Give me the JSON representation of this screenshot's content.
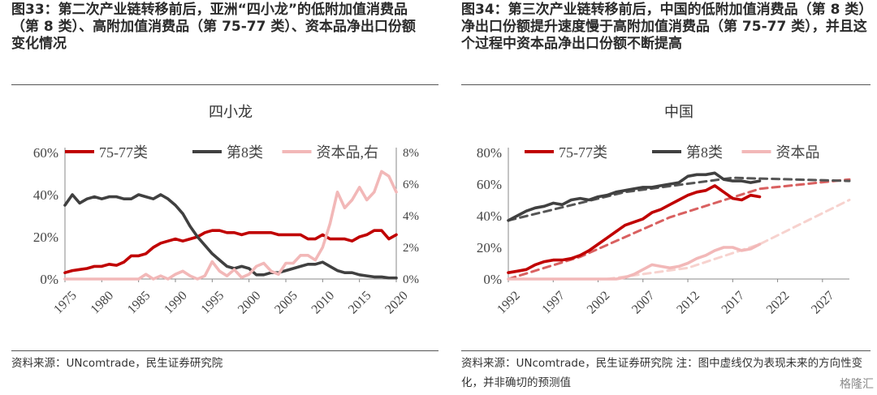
{
  "left": {
    "fig_title": "图33：第二次产业链转移前后，亚洲“四小龙”的低附加值消费品（第 8 类）、高附加值消费品（第 75-77 类）、资本品净出口份额变化情况",
    "source": "资料来源：UNcomtrade，民生证券研究院"
  },
  "right": {
    "fig_title": "图34：第三次产业链转移前后，中国的低附加值消费品（第 8 类）净出口份额提升速度慢于高附加值消费品（第 75-77 类），并且这个过程中资本品净出口份额不断提高",
    "source": "资料来源：UNcomtrade，民生证券研究院 注：图中虚线仅为表现未来的方向性变化，并非确切的预测值"
  },
  "watermark": "格隆汇",
  "chart_data": [
    {
      "type": "line",
      "title": "四小龙",
      "x": [
        1975,
        1976,
        1977,
        1978,
        1979,
        1980,
        1981,
        1982,
        1983,
        1984,
        1985,
        1986,
        1987,
        1988,
        1989,
        1990,
        1991,
        1992,
        1993,
        1994,
        1995,
        1996,
        1997,
        1998,
        1999,
        2000,
        2001,
        2002,
        2003,
        2004,
        2005,
        2006,
        2007,
        2008,
        2009,
        2010,
        2011,
        2012,
        2013,
        2014,
        2015,
        2016,
        2017,
        2018,
        2019,
        2020
      ],
      "x_ticks": [
        "1975",
        "1980",
        "1985",
        "1990",
        "1995",
        "2000",
        "2005",
        "2010",
        "2015",
        "2020"
      ],
      "ylim": [
        0,
        60
      ],
      "y_ticks": [
        "0%",
        "20%",
        "40%",
        "60%"
      ],
      "y2lim": [
        0,
        8
      ],
      "y2_ticks": [
        "0%",
        "2%",
        "4%",
        "6%",
        "8%"
      ],
      "series": [
        {
          "name": "75-77类",
          "color": "#c00000",
          "axis": "left",
          "values": [
            3,
            4,
            4.5,
            5,
            6,
            6,
            7,
            6.5,
            8,
            11,
            11,
            12,
            15,
            17,
            18,
            19,
            18,
            19,
            20,
            22,
            23,
            23,
            22,
            22,
            21,
            22,
            22,
            22,
            22,
            21,
            21,
            21,
            21,
            19,
            19,
            21,
            19,
            19,
            19,
            18,
            20,
            21,
            23,
            23,
            19,
            21
          ]
        },
        {
          "name": "第8类",
          "color": "#404040",
          "axis": "left",
          "values": [
            35,
            40,
            36,
            38,
            39,
            38,
            39,
            39,
            38,
            38,
            40,
            39,
            38,
            40,
            38,
            35,
            31,
            25,
            20,
            16,
            12,
            9,
            6,
            5,
            6,
            5,
            2,
            2,
            3,
            3,
            4,
            5,
            6,
            7,
            7,
            8,
            6,
            4,
            3,
            3,
            2,
            1.5,
            1,
            1,
            0.5,
            0.5
          ]
        },
        {
          "name": "资本品,右",
          "color": "#f2b8b8",
          "axis": "right",
          "values": [
            0,
            0,
            0,
            0,
            0,
            0,
            0,
            0,
            0,
            0,
            0,
            0.3,
            0,
            0.2,
            0,
            0.3,
            0.5,
            0.2,
            0,
            0.2,
            1.1,
            0.5,
            0.2,
            0.6,
            0.1,
            0.3,
            0.8,
            1.0,
            0.5,
            0.3,
            1.0,
            1.0,
            1.5,
            1.5,
            1.2,
            2.0,
            3.5,
            5.5,
            4.5,
            5.0,
            5.8,
            5.0,
            5.5,
            6.8,
            6.5,
            5.5
          ]
        }
      ]
    },
    {
      "type": "line",
      "title": "中国",
      "x": [
        1992,
        1993,
        1994,
        1995,
        1996,
        1997,
        1998,
        1999,
        2000,
        2001,
        2002,
        2003,
        2004,
        2005,
        2006,
        2007,
        2008,
        2009,
        2010,
        2011,
        2012,
        2013,
        2014,
        2015,
        2016,
        2017,
        2018,
        2019,
        2020
      ],
      "x_ticks": [
        "1992",
        "1997",
        "2002",
        "2007",
        "2012",
        "2017",
        "2022",
        "2027"
      ],
      "ylim": [
        0,
        80
      ],
      "y_ticks": [
        "0%",
        "20%",
        "40%",
        "60%",
        "80%"
      ],
      "series": [
        {
          "name": "75-77类",
          "color": "#c00000",
          "values": [
            4,
            5,
            6,
            9,
            11,
            12,
            12,
            13,
            15,
            18,
            22,
            26,
            30,
            34,
            36,
            38,
            42,
            44,
            47,
            50,
            53,
            55,
            56,
            59,
            55,
            51,
            50,
            53,
            52
          ]
        },
        {
          "name": "第8类",
          "color": "#404040",
          "values": [
            37,
            40,
            43,
            45,
            46,
            48,
            47,
            50,
            51,
            50,
            52,
            53,
            55,
            56,
            57,
            58,
            58,
            59,
            60,
            61,
            65,
            66,
            66,
            67,
            63,
            62,
            62,
            61,
            62
          ]
        },
        {
          "name": "资本品",
          "color": "#f2b8b8",
          "values": [
            0,
            0,
            0,
            0,
            0,
            0,
            0,
            0,
            0,
            0,
            0,
            0,
            0,
            1,
            3,
            6,
            9,
            8,
            7,
            8,
            10,
            13,
            15,
            18,
            20,
            20,
            18,
            19,
            22
          ]
        }
      ],
      "trend_lines": [
        {
          "series": "75-77类",
          "color": "#d96060",
          "points": [
            [
              1992,
              0
            ],
            [
              2000,
              14
            ],
            [
              2010,
              39
            ],
            [
              2020,
              57
            ],
            [
              2030,
              63
            ]
          ]
        },
        {
          "series": "第8类",
          "color": "#555555",
          "points": [
            [
              1992,
              37
            ],
            [
              2005,
              55
            ],
            [
              2017,
              64
            ],
            [
              2030,
              62
            ]
          ]
        },
        {
          "series": "资本品",
          "color": "#f7d2ce",
          "points": [
            [
              2003,
              0
            ],
            [
              2012,
              7
            ],
            [
              2020,
              22
            ],
            [
              2030,
              50
            ]
          ]
        }
      ]
    }
  ]
}
